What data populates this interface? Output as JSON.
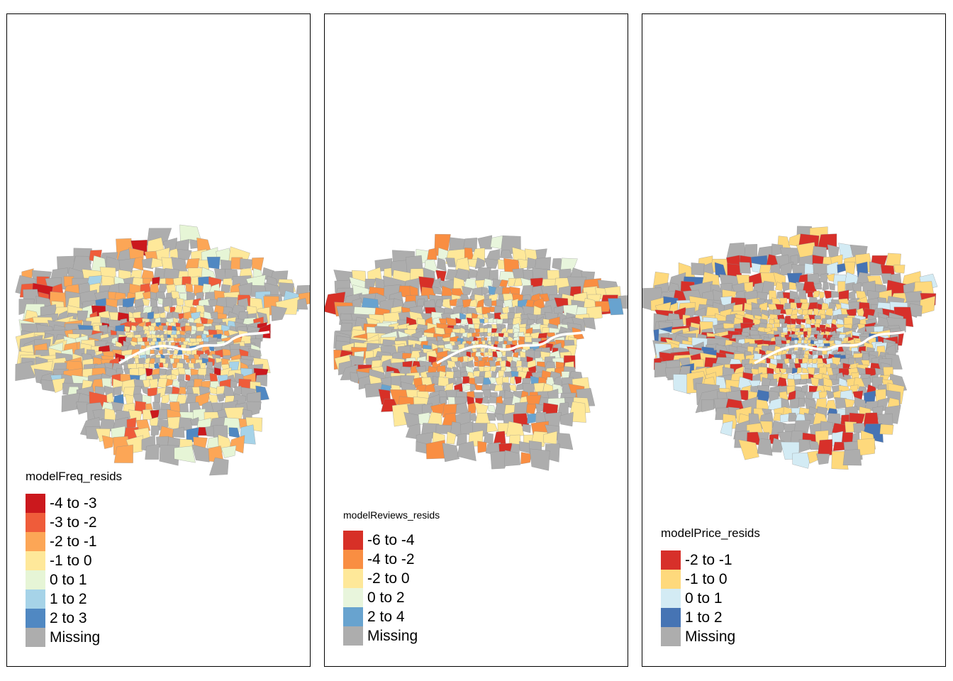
{
  "panels": [
    {
      "legend_title": "modelFreq_resids",
      "legend_title_size": 17,
      "legend_items": [
        {
          "label": "-4 to -3",
          "color": "#cb181d"
        },
        {
          "label": "-3 to -2",
          "color": "#ef5c3a"
        },
        {
          "label": "-2 to -1",
          "color": "#fca656"
        },
        {
          "label": "-1 to 0",
          "color": "#fee89a"
        },
        {
          "label": "0 to 1",
          "color": "#e6f5d6"
        },
        {
          "label": "1 to 2",
          "color": "#a6d3e8"
        },
        {
          "label": "2 to 3",
          "color": "#5088c2"
        },
        {
          "label": "Missing",
          "color": "#adadad"
        }
      ]
    },
    {
      "legend_title": "modelReviews_resids",
      "legend_title_size": 14,
      "legend_items": [
        {
          "label": "-6 to -4",
          "color": "#d73027"
        },
        {
          "label": "-4 to -2",
          "color": "#f98e42"
        },
        {
          "label": "-2 to 0",
          "color": "#fee899"
        },
        {
          "label": "0 to 2",
          "color": "#e8f5dc"
        },
        {
          "label": "2 to 4",
          "color": "#68a3cf"
        },
        {
          "label": "Missing",
          "color": "#adadad"
        }
      ]
    },
    {
      "legend_title": "modelPrice_resids",
      "legend_title_size": 17,
      "legend_items": [
        {
          "label": "-2 to -1",
          "color": "#d7302a"
        },
        {
          "label": "-1 to 0",
          "color": "#fed97c"
        },
        {
          "label": "0 to 1",
          "color": "#d3ebf4"
        },
        {
          "label": "1 to 2",
          "color": "#4674b4"
        },
        {
          "label": "Missing",
          "color": "#adadad"
        }
      ]
    }
  ]
}
